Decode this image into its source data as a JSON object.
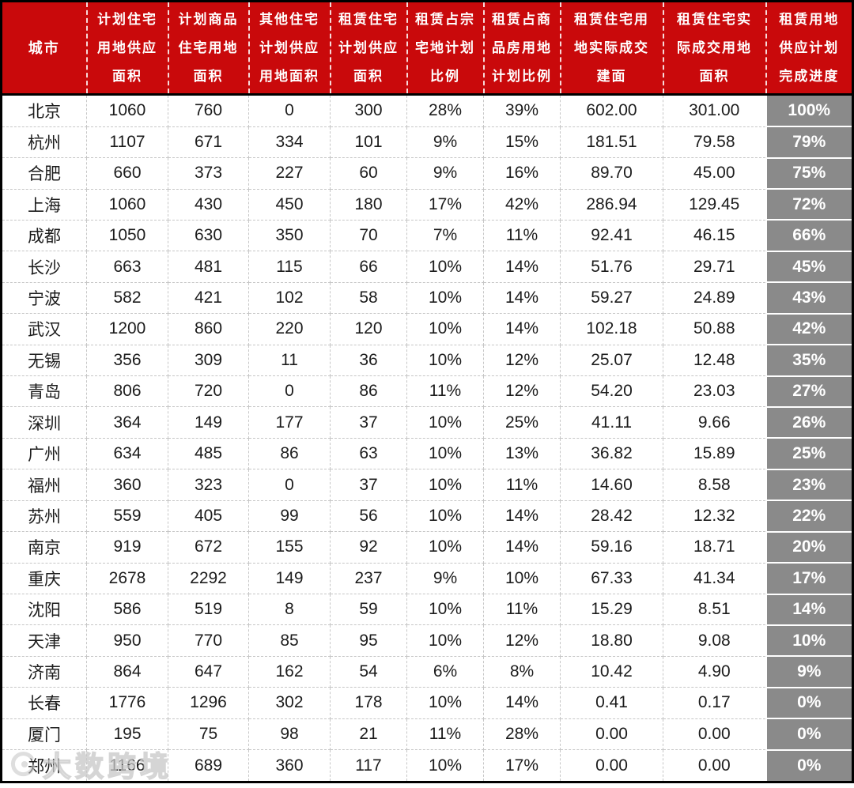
{
  "colors": {
    "header_bg": "#c9090b",
    "header_text": "#ffffff",
    "progress_bg": "#8a8a8a",
    "progress_text": "#ffffff",
    "body_text": "#1c1c1c",
    "grid_dashed": "#c6c6c6",
    "outer_border": "#000000"
  },
  "watermark": {
    "text": "大数跨境"
  },
  "chart_data": {
    "type": "table",
    "columns": [
      "城市",
      "计划住宅\n用地供应\n面积",
      "计划商品\n住宅用地\n面积",
      "其他住宅\n计划供应\n用地面积",
      "租赁住宅\n计划供应\n面积",
      "租赁占宗\n宅地计划\n比例",
      "租赁占商\n品房用地\n计划比例",
      "租赁住宅用\n地实际成交\n建面",
      "租赁住宅实\n际成交用地\n面积",
      "租赁用地\n供应计划\n完成进度"
    ],
    "rows": [
      [
        "北京",
        "1060",
        "760",
        "0",
        "300",
        "28%",
        "39%",
        "602.00",
        "301.00",
        "100%"
      ],
      [
        "杭州",
        "1107",
        "671",
        "334",
        "101",
        "9%",
        "15%",
        "181.51",
        "79.58",
        "79%"
      ],
      [
        "合肥",
        "660",
        "373",
        "227",
        "60",
        "9%",
        "16%",
        "89.70",
        "45.00",
        "75%"
      ],
      [
        "上海",
        "1060",
        "430",
        "450",
        "180",
        "17%",
        "42%",
        "286.94",
        "129.45",
        "72%"
      ],
      [
        "成都",
        "1050",
        "630",
        "350",
        "70",
        "7%",
        "11%",
        "92.41",
        "46.15",
        "66%"
      ],
      [
        "长沙",
        "663",
        "481",
        "115",
        "66",
        "10%",
        "14%",
        "51.76",
        "29.71",
        "45%"
      ],
      [
        "宁波",
        "582",
        "421",
        "102",
        "58",
        "10%",
        "14%",
        "59.27",
        "24.89",
        "43%"
      ],
      [
        "武汉",
        "1200",
        "860",
        "220",
        "120",
        "10%",
        "14%",
        "102.18",
        "50.88",
        "42%"
      ],
      [
        "无锡",
        "356",
        "309",
        "11",
        "36",
        "10%",
        "12%",
        "25.07",
        "12.48",
        "35%"
      ],
      [
        "青岛",
        "806",
        "720",
        "0",
        "86",
        "11%",
        "12%",
        "54.20",
        "23.03",
        "27%"
      ],
      [
        "深圳",
        "364",
        "149",
        "177",
        "37",
        "10%",
        "25%",
        "41.11",
        "9.66",
        "26%"
      ],
      [
        "广州",
        "634",
        "485",
        "86",
        "63",
        "10%",
        "13%",
        "36.82",
        "15.89",
        "25%"
      ],
      [
        "福州",
        "360",
        "323",
        "0",
        "37",
        "10%",
        "11%",
        "14.60",
        "8.58",
        "23%"
      ],
      [
        "苏州",
        "559",
        "405",
        "99",
        "56",
        "10%",
        "14%",
        "28.42",
        "12.32",
        "22%"
      ],
      [
        "南京",
        "919",
        "672",
        "155",
        "92",
        "10%",
        "14%",
        "59.16",
        "18.71",
        "20%"
      ],
      [
        "重庆",
        "2678",
        "2292",
        "149",
        "237",
        "9%",
        "10%",
        "67.33",
        "41.34",
        "17%"
      ],
      [
        "沈阳",
        "586",
        "519",
        "8",
        "59",
        "10%",
        "11%",
        "15.29",
        "8.51",
        "14%"
      ],
      [
        "天津",
        "950",
        "770",
        "85",
        "95",
        "10%",
        "12%",
        "18.80",
        "9.08",
        "10%"
      ],
      [
        "济南",
        "864",
        "647",
        "162",
        "54",
        "6%",
        "8%",
        "10.42",
        "4.90",
        "9%"
      ],
      [
        "长春",
        "1776",
        "1296",
        "302",
        "178",
        "10%",
        "14%",
        "0.41",
        "0.17",
        "0%"
      ],
      [
        "厦门",
        "195",
        "75",
        "98",
        "21",
        "11%",
        "28%",
        "0.00",
        "0.00",
        "0%"
      ],
      [
        "郑州",
        "1166",
        "689",
        "360",
        "117",
        "10%",
        "17%",
        "0.00",
        "0.00",
        "0%"
      ]
    ]
  }
}
